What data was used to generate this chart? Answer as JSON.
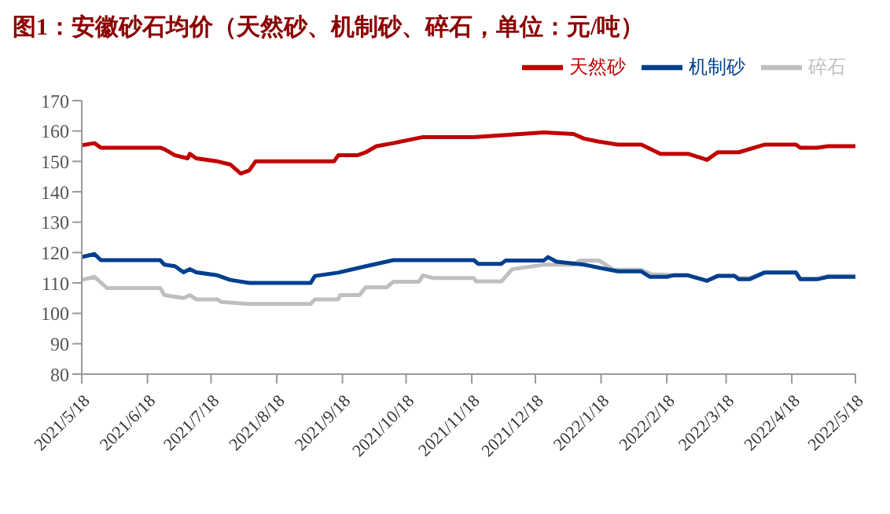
{
  "chart_data": {
    "type": "line",
    "title": "图1：安徽砂石均价（天然砂、机制砂、碎石，单位：元/吨）",
    "xlim": [
      "2021-05-18",
      "2022-05-18"
    ],
    "xticks": [
      {
        "value": "2021-05-18",
        "label": "2021/5/18"
      },
      {
        "value": "2021-06-18",
        "label": "2021/6/18"
      },
      {
        "value": "2021-07-18",
        "label": "2021/7/18"
      },
      {
        "value": "2021-08-18",
        "label": "2021/8/18"
      },
      {
        "value": "2021-09-18",
        "label": "2021/9/18"
      },
      {
        "value": "2021-10-18",
        "label": "2021/10/18"
      },
      {
        "value": "2021-11-18",
        "label": "2021/11/18"
      },
      {
        "value": "2021-12-18",
        "label": "2021/12/18"
      },
      {
        "value": "2022-01-18",
        "label": "2022/1/18"
      },
      {
        "value": "2022-02-18",
        "label": "2022/2/18"
      },
      {
        "value": "2022-03-18",
        "label": "2022/3/18"
      },
      {
        "value": "2022-04-18",
        "label": "2022/4/18"
      },
      {
        "value": "2022-05-18",
        "label": "2022/5/18"
      }
    ],
    "ylim": [
      80,
      170
    ],
    "yticks": [
      80,
      90,
      100,
      110,
      120,
      130,
      140,
      150,
      160,
      170
    ],
    "grid": false,
    "legend": "top right",
    "marker": "none",
    "line_style": "solid",
    "series": [
      {
        "name": "天然砂",
        "color": "#c00000",
        "x": [
          "2021-05-18",
          "2021-05-24",
          "2021-05-27",
          "2021-06-24",
          "2021-06-26",
          "2021-07-01",
          "2021-07-07",
          "2021-07-08",
          "2021-07-11",
          "2021-07-21",
          "2021-07-27",
          "2021-08-01",
          "2021-08-05",
          "2021-08-08",
          "2021-09-14",
          "2021-09-16",
          "2021-09-25",
          "2021-09-29",
          "2021-10-04",
          "2021-10-12",
          "2021-10-26",
          "2021-11-19",
          "2021-12-22",
          "2022-01-05",
          "2022-01-10",
          "2022-01-17",
          "2022-01-26",
          "2022-02-06",
          "2022-02-15",
          "2022-02-28",
          "2022-03-09",
          "2022-03-14",
          "2022-03-24",
          "2022-04-05",
          "2022-04-20",
          "2022-04-22",
          "2022-04-30",
          "2022-05-05",
          "2022-05-18"
        ],
        "values": [
          155.3,
          156,
          154.5,
          154.5,
          154,
          152,
          151,
          152.5,
          151,
          150,
          149,
          146,
          147,
          150,
          150,
          152,
          152,
          153,
          155,
          156,
          158,
          158,
          159.5,
          159,
          157.5,
          156.5,
          155.5,
          155.5,
          152.5,
          152.5,
          150.5,
          153,
          153,
          155.5,
          155.5,
          154.5,
          154.5,
          155,
          155
        ]
      },
      {
        "name": "碎石",
        "color": "#bfbfbf",
        "x": [
          "2021-05-18",
          "2021-05-24",
          "2021-05-30",
          "2021-06-24",
          "2021-06-26",
          "2021-07-05",
          "2021-07-08",
          "2021-07-11",
          "2021-07-21",
          "2021-07-23",
          "2021-08-05",
          "2021-09-03",
          "2021-09-05",
          "2021-09-16",
          "2021-09-17",
          "2021-09-26",
          "2021-09-29",
          "2021-10-09",
          "2021-10-12",
          "2021-10-24",
          "2021-10-26",
          "2021-10-31",
          "2021-11-19",
          "2021-11-20",
          "2021-12-02",
          "2021-12-07",
          "2021-12-22",
          "2022-01-05",
          "2022-01-08",
          "2022-01-17",
          "2022-01-24",
          "2022-02-06",
          "2022-02-11",
          "2022-02-15",
          "2022-02-21",
          "2022-02-28",
          "2022-03-09",
          "2022-03-14",
          "2022-03-22",
          "2022-03-24",
          "2022-03-29",
          "2022-04-05",
          "2022-04-20",
          "2022-04-22",
          "2022-04-30",
          "2022-05-05",
          "2022-05-18"
        ],
        "values": [
          111,
          112,
          108.3,
          108.3,
          106,
          105,
          106,
          104.6,
          104.6,
          103.7,
          103.1,
          103.1,
          104.6,
          104.6,
          106,
          106,
          108.6,
          108.6,
          110.4,
          110.4,
          112.5,
          111.6,
          111.6,
          110.5,
          110.5,
          114.5,
          116,
          116,
          117.4,
          117.4,
          114.3,
          114.3,
          112.8,
          112.8,
          112.5,
          112.5,
          110.8,
          112.3,
          112.3,
          111.6,
          111.6,
          113.4,
          113.4,
          111.4,
          111.4,
          112.3,
          112.3
        ]
      },
      {
        "name": "机制砂",
        "color": "#003f8f",
        "x": [
          "2021-05-18",
          "2021-05-24",
          "2021-05-27",
          "2021-06-24",
          "2021-06-26",
          "2021-07-01",
          "2021-07-05",
          "2021-07-08",
          "2021-07-11",
          "2021-07-21",
          "2021-07-27",
          "2021-08-05",
          "2021-09-03",
          "2021-09-05",
          "2021-09-16",
          "2021-09-29",
          "2021-10-12",
          "2021-11-19",
          "2021-11-21",
          "2021-12-02",
          "2021-12-04",
          "2021-12-22",
          "2021-12-24",
          "2021-12-28",
          "2022-01-10",
          "2022-01-17",
          "2022-01-26",
          "2022-02-06",
          "2022-02-10",
          "2022-02-18",
          "2022-02-21",
          "2022-02-28",
          "2022-03-09",
          "2022-03-14",
          "2022-03-22",
          "2022-03-24",
          "2022-03-29",
          "2022-04-05",
          "2022-04-20",
          "2022-04-22",
          "2022-04-30",
          "2022-05-05",
          "2022-05-18"
        ],
        "values": [
          118.5,
          119.5,
          117.5,
          117.5,
          116,
          115.5,
          113.5,
          114.5,
          113.5,
          112.5,
          111,
          110,
          110,
          112.3,
          113.4,
          115.5,
          117.5,
          117.5,
          116.3,
          116.3,
          117.4,
          117.4,
          118.5,
          117,
          116,
          115,
          113.8,
          113.8,
          112,
          112,
          112.5,
          112.5,
          110.7,
          112.3,
          112.3,
          111.2,
          111.2,
          113.4,
          113.4,
          111.2,
          111.2,
          112,
          112
        ]
      }
    ]
  }
}
